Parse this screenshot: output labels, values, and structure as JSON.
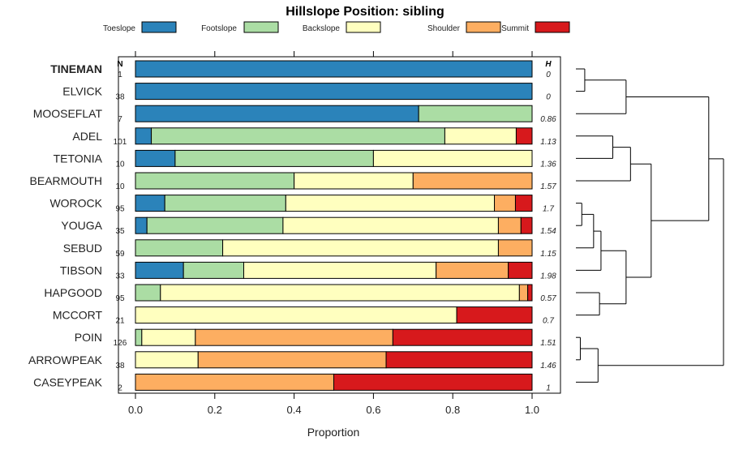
{
  "chart_data": {
    "type": "bar",
    "orientation": "horizontal",
    "stacked": true,
    "title": "Hillslope Position: sibling",
    "xlabel": "Proportion",
    "ylabel": "",
    "xlim": [
      0,
      1
    ],
    "x_ticks": [
      "0.0",
      "0.2",
      "0.4",
      "0.6",
      "0.8",
      "1.0"
    ],
    "n_header": "N",
    "h_header": "H",
    "legend_position": "top",
    "series": [
      {
        "name": "Toeslope",
        "color": "#2b83ba"
      },
      {
        "name": "Footslope",
        "color": "#abdda4"
      },
      {
        "name": "Backslope",
        "color": "#ffffbf"
      },
      {
        "name": "Shoulder",
        "color": "#fdae61"
      },
      {
        "name": "Summit",
        "color": "#d7191c"
      }
    ],
    "rows": [
      {
        "label": "TINEMAN",
        "bold": true,
        "n": "1",
        "h": "0",
        "values": [
          1.0,
          0.0,
          0.0,
          0.0,
          0.0
        ]
      },
      {
        "label": "ELVICK",
        "bold": false,
        "n": "38",
        "h": "0",
        "values": [
          1.0,
          0.0,
          0.0,
          0.0,
          0.0
        ]
      },
      {
        "label": "MOOSEFLAT",
        "bold": false,
        "n": "7",
        "h": "0.86",
        "values": [
          0.714,
          0.286,
          0.0,
          0.0,
          0.0
        ]
      },
      {
        "label": "ADEL",
        "bold": false,
        "n": "101",
        "h": "1.13",
        "values": [
          0.04,
          0.74,
          0.18,
          0.0,
          0.04
        ]
      },
      {
        "label": "TETONIA",
        "bold": false,
        "n": "10",
        "h": "1.36",
        "values": [
          0.1,
          0.5,
          0.4,
          0.0,
          0.0
        ]
      },
      {
        "label": "BEARMOUTH",
        "bold": false,
        "n": "10",
        "h": "1.57",
        "values": [
          0.0,
          0.4,
          0.3,
          0.3,
          0.0
        ]
      },
      {
        "label": "WOROCK",
        "bold": false,
        "n": "95",
        "h": "1.7",
        "values": [
          0.074,
          0.305,
          0.526,
          0.053,
          0.042
        ]
      },
      {
        "label": "YOUGA",
        "bold": false,
        "n": "35",
        "h": "1.54",
        "values": [
          0.029,
          0.343,
          0.543,
          0.057,
          0.028
        ]
      },
      {
        "label": "SEBUD",
        "bold": false,
        "n": "59",
        "h": "1.15",
        "values": [
          0.0,
          0.22,
          0.695,
          0.085,
          0.0
        ]
      },
      {
        "label": "TIBSON",
        "bold": false,
        "n": "33",
        "h": "1.98",
        "values": [
          0.121,
          0.152,
          0.485,
          0.182,
          0.06
        ]
      },
      {
        "label": "HAPGOOD",
        "bold": false,
        "n": "95",
        "h": "0.57",
        "values": [
          0.0,
          0.063,
          0.905,
          0.021,
          0.011
        ]
      },
      {
        "label": "MCCORT",
        "bold": false,
        "n": "21",
        "h": "0.7",
        "values": [
          0.0,
          0.0,
          0.81,
          0.0,
          0.19
        ]
      },
      {
        "label": "POIN",
        "bold": false,
        "n": "126",
        "h": "1.51",
        "values": [
          0.0,
          0.016,
          0.135,
          0.498,
          0.351
        ]
      },
      {
        "label": "ARROWPEAK",
        "bold": false,
        "n": "38",
        "h": "1.46",
        "values": [
          0.0,
          0.0,
          0.158,
          0.474,
          0.368
        ]
      },
      {
        "label": "CASEYPEAK",
        "bold": false,
        "n": "2",
        "h": "1",
        "values": [
          0.0,
          0.0,
          0.0,
          0.5,
          0.5
        ]
      }
    ],
    "dendrogram": {
      "leaves_top_to_bottom": [
        "TINEMAN",
        "ELVICK",
        "MOOSEFLAT",
        "ADEL",
        "TETONIA",
        "BEARMOUTH",
        "WOROCK",
        "YOUGA",
        "SEBUD",
        "TIBSON",
        "HAPGOOD",
        "MCCORT",
        "POIN",
        "ARROWPEAK",
        "CASEYPEAK"
      ],
      "merges": [
        {
          "left": "TINEMAN",
          "right": "ELVICK",
          "height": 0.06
        },
        {
          "left": "TINEMAN+ELVICK",
          "right": "MOOSEFLAT",
          "height": 0.34
        },
        {
          "left": "ADEL",
          "right": "TETONIA",
          "height": 0.25
        },
        {
          "left": "ADEL+TETONIA",
          "right": "BEARMOUTH",
          "height": 0.37
        },
        {
          "left": "WOROCK",
          "right": "YOUGA",
          "height": 0.04
        },
        {
          "left": "WOROCK+YOUGA",
          "right": "SEBUD",
          "height": 0.12
        },
        {
          "left": "WOROCK+YOUGA+SEBUD",
          "right": "TIBSON",
          "height": 0.17
        },
        {
          "left": "HAPGOOD",
          "right": "MCCORT",
          "height": 0.16
        },
        {
          "left": "WOROCK..TIBSON",
          "right": "HAPGOOD+MCCORT",
          "height": 0.34
        },
        {
          "left": "ADEL..BEARMOUTH",
          "right": "WOROCK..MCCORT",
          "height": 0.51
        },
        {
          "left": "POIN",
          "right": "ARROWPEAK",
          "height": 0.03
        },
        {
          "left": "POIN+ARROWPEAK",
          "right": "CASEYPEAK",
          "height": 0.15
        },
        {
          "left": "TINEMAN..MOOSEFLAT",
          "right": "ADEL..MCCORT",
          "height": 0.9
        },
        {
          "left": "TINEMAN..MCCORT",
          "right": "POIN..CASEYPEAK",
          "height": 1.0
        }
      ]
    }
  }
}
